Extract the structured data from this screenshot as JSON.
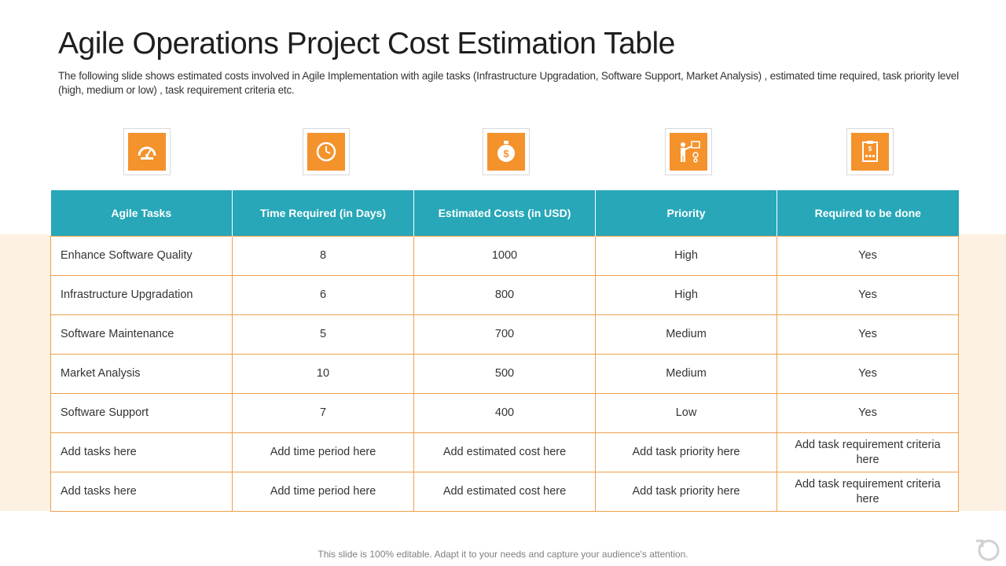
{
  "slide": {
    "title": "Agile Operations Project Cost Estimation Table",
    "subtitle": "The following slide shows estimated costs involved in Agile Implementation with agile tasks (Infrastructure Upgradation, Software Support, Market Analysis) , estimated time required, task priority level (high, medium or low) , task requirement criteria etc.",
    "footer": "This slide is 100% editable. Adapt it to your needs and capture your audience's attention."
  },
  "icons": [
    "quality-gauge-icon",
    "clock-icon",
    "dollar-coin-icon",
    "presenter-board-icon",
    "checklist-clipboard-icon"
  ],
  "colors": {
    "header": "#27a7b8",
    "accent": "#f4922c",
    "border": "#f0a04b",
    "band": "#fdf1e3"
  },
  "table": {
    "headers": [
      "Agile Tasks",
      "Time Required (in Days)",
      "Estimated Costs (in USD)",
      "Priority",
      "Required to be done"
    ],
    "rows": [
      [
        "Enhance Software Quality",
        "8",
        "1000",
        "High",
        "Yes"
      ],
      [
        "Infrastructure Upgradation",
        "6",
        "800",
        "High",
        "Yes"
      ],
      [
        "Software Maintenance",
        "5",
        "700",
        "Medium",
        "Yes"
      ],
      [
        "Market Analysis",
        "10",
        "500",
        "Medium",
        "Yes"
      ],
      [
        "Software Support",
        "7",
        "400",
        "Low",
        "Yes"
      ],
      [
        "Add tasks  here",
        "Add time period here",
        "Add estimated cost here",
        "Add task priority  here",
        "Add task requirement criteria here"
      ],
      [
        "Add tasks  here",
        "Add time period here",
        "Add estimated cost here",
        "Add task priority  here",
        "Add task requirement criteria here"
      ]
    ]
  }
}
